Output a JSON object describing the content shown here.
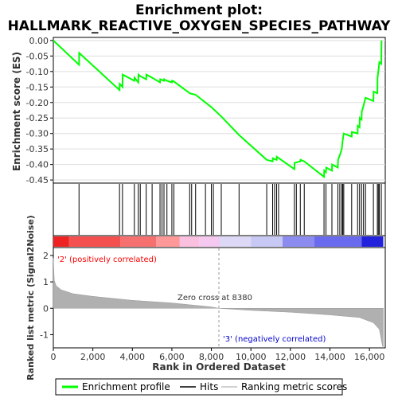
{
  "title_line1": "Enrichment plot:",
  "title_line2": "HALLMARK_REACTIVE_OXYGEN_SPECIES_PATHWAY",
  "es_axis_label": "Enrichment score (ES)",
  "metric_axis_label": "Ranked list metric (Signal2Noise)",
  "x_axis_label": "Rank in Ordered Dataset",
  "positive_label": "'2' (positively correlated)",
  "negative_label": "'3' (negatively correlated)",
  "zero_cross_label": "Zero cross at 8380",
  "legend": {
    "profile": "Enrichment profile",
    "hits": "Hits",
    "ranking": "Ranking metric scores"
  },
  "colors": {
    "profile": "#00ff00",
    "hits": "#000000",
    "metric_fill": "#b0b0b0",
    "positive_text": "#ff0000",
    "negative_text": "#0000cc"
  },
  "chart_data": {
    "type": "line",
    "x_ticks": [
      "0",
      "2,000",
      "4,000",
      "6,000",
      "8,000",
      "10,000",
      "12,000",
      "14,000",
      "16,000"
    ],
    "x_tick_values": [
      0,
      2000,
      4000,
      6000,
      8000,
      10000,
      12000,
      14000,
      16000
    ],
    "xlim": [
      0,
      16800
    ],
    "es_ticks": [
      "0.00",
      "-0.05",
      "-0.10",
      "-0.15",
      "-0.20",
      "-0.25",
      "-0.30",
      "-0.35",
      "-0.40",
      "-0.45"
    ],
    "es_tick_values": [
      0,
      -0.05,
      -0.1,
      -0.15,
      -0.2,
      -0.25,
      -0.3,
      -0.35,
      -0.4,
      -0.45
    ],
    "es_ylim": [
      -0.46,
      0.01
    ],
    "metric_ticks": [
      "2",
      "1",
      "0",
      "-1"
    ],
    "metric_tick_values": [
      2,
      1,
      0,
      -1
    ],
    "metric_ylim": [
      -1.5,
      2.3
    ],
    "zero_cross": 8380,
    "hits": [
      1300,
      3350,
      3500,
      4100,
      4300,
      4400,
      4700,
      5000,
      5400,
      5500,
      5600,
      5750,
      6000,
      6100,
      6900,
      7000,
      7200,
      7700,
      8000,
      8100,
      8500,
      9400,
      10800,
      11100,
      11200,
      11300,
      11400,
      12200,
      12300,
      12500,
      12700,
      13700,
      13800,
      14100,
      14400,
      14500,
      14600,
      14650,
      14700,
      15100,
      15400,
      15500,
      15600,
      15700,
      15800,
      16200,
      16400,
      16450,
      16500,
      16600
    ],
    "es_profile": [
      [
        0,
        0.0
      ],
      [
        1300,
        -0.078
      ],
      [
        1310,
        -0.04
      ],
      [
        3350,
        -0.16
      ],
      [
        3360,
        -0.14
      ],
      [
        3500,
        -0.15
      ],
      [
        3510,
        -0.11
      ],
      [
        4100,
        -0.13
      ],
      [
        4110,
        -0.12
      ],
      [
        4300,
        -0.135
      ],
      [
        4310,
        -0.11
      ],
      [
        4400,
        -0.115
      ],
      [
        4700,
        -0.125
      ],
      [
        4710,
        -0.11
      ],
      [
        5000,
        -0.12
      ],
      [
        5400,
        -0.135
      ],
      [
        5410,
        -0.125
      ],
      [
        5600,
        -0.13
      ],
      [
        5610,
        -0.125
      ],
      [
        5750,
        -0.13
      ],
      [
        6000,
        -0.135
      ],
      [
        6010,
        -0.13
      ],
      [
        6100,
        -0.132
      ],
      [
        6900,
        -0.17
      ],
      [
        7000,
        -0.172
      ],
      [
        7200,
        -0.175
      ],
      [
        7700,
        -0.2
      ],
      [
        8000,
        -0.215
      ],
      [
        8500,
        -0.245
      ],
      [
        9400,
        -0.305
      ],
      [
        10800,
        -0.385
      ],
      [
        11100,
        -0.39
      ],
      [
        11110,
        -0.38
      ],
      [
        11300,
        -0.385
      ],
      [
        11310,
        -0.375
      ],
      [
        12200,
        -0.415
      ],
      [
        12210,
        -0.395
      ],
      [
        12500,
        -0.39
      ],
      [
        12510,
        -0.385
      ],
      [
        12700,
        -0.39
      ],
      [
        13700,
        -0.44
      ],
      [
        13710,
        -0.42
      ],
      [
        13800,
        -0.425
      ],
      [
        13810,
        -0.41
      ],
      [
        14100,
        -0.42
      ],
      [
        14110,
        -0.4
      ],
      [
        14400,
        -0.41
      ],
      [
        14410,
        -0.385
      ],
      [
        14500,
        -0.37
      ],
      [
        14600,
        -0.35
      ],
      [
        14650,
        -0.32
      ],
      [
        14700,
        -0.3
      ],
      [
        15100,
        -0.31
      ],
      [
        15110,
        -0.295
      ],
      [
        15400,
        -0.3
      ],
      [
        15410,
        -0.275
      ],
      [
        15500,
        -0.28
      ],
      [
        15510,
        -0.25
      ],
      [
        15600,
        -0.255
      ],
      [
        15610,
        -0.23
      ],
      [
        15700,
        -0.21
      ],
      [
        15800,
        -0.185
      ],
      [
        16200,
        -0.195
      ],
      [
        16210,
        -0.165
      ],
      [
        16400,
        -0.17
      ],
      [
        16410,
        -0.12
      ],
      [
        16450,
        -0.1
      ],
      [
        16500,
        -0.07
      ],
      [
        16600,
        -0.075
      ],
      [
        16610,
        0.0
      ]
    ],
    "metric_profile": [
      [
        0,
        1.9
      ],
      [
        50,
        1.05
      ],
      [
        150,
        0.85
      ],
      [
        400,
        0.7
      ],
      [
        1000,
        0.55
      ],
      [
        2000,
        0.45
      ],
      [
        4000,
        0.3
      ],
      [
        6000,
        0.2
      ],
      [
        8000,
        0.05
      ],
      [
        8380,
        0.0
      ],
      [
        10000,
        -0.08
      ],
      [
        12000,
        -0.15
      ],
      [
        14000,
        -0.25
      ],
      [
        15500,
        -0.35
      ],
      [
        16200,
        -0.55
      ],
      [
        16500,
        -0.8
      ],
      [
        16650,
        -1.4
      ],
      [
        16700,
        -1.5
      ]
    ],
    "bar_segments": [
      {
        "from": 0,
        "to": 800,
        "color": "#ee2222"
      },
      {
        "from": 800,
        "to": 3400,
        "color": "#f55050"
      },
      {
        "from": 3400,
        "to": 5200,
        "color": "#f77070"
      },
      {
        "from": 5200,
        "to": 6400,
        "color": "#f99"
      },
      {
        "from": 6400,
        "to": 7400,
        "color": "#fbc0e0"
      },
      {
        "from": 7400,
        "to": 8400,
        "color": "#f5c8f0"
      },
      {
        "from": 8400,
        "to": 10000,
        "color": "#dcd8f5"
      },
      {
        "from": 10000,
        "to": 11600,
        "color": "#c8c8f5"
      },
      {
        "from": 11600,
        "to": 13200,
        "color": "#8c8cf0"
      },
      {
        "from": 13200,
        "to": 15600,
        "color": "#6a6aee"
      },
      {
        "from": 15600,
        "to": 16700,
        "color": "#2222dd"
      }
    ]
  }
}
